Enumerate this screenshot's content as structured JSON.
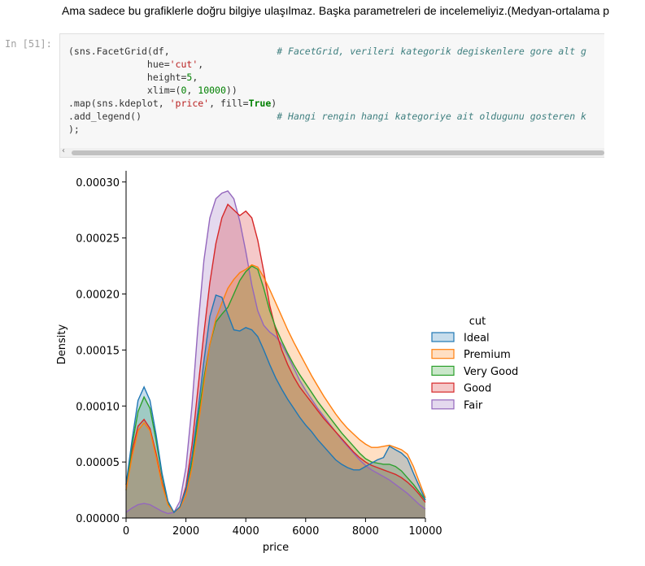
{
  "markdown": {
    "text": "Ama sadece bu grafiklerle doğru bilgiye ulaşılmaz. Başka parametreleri de incelemeliyiz.(Medyan-ortalama p"
  },
  "cell": {
    "prompt": "In [51]:",
    "code_lines": [
      [
        {
          "t": "(sns.FacetGrid(df,                   "
        },
        {
          "t": "# FacetGrid, verileri kategorik degiskenlere gore alt g",
          "c": "cm"
        }
      ],
      [
        {
          "t": "              hue="
        },
        {
          "t": "'cut'",
          "c": "str"
        },
        {
          "t": ","
        }
      ],
      [
        {
          "t": "              height="
        },
        {
          "t": "5",
          "c": "num"
        },
        {
          "t": ","
        }
      ],
      [
        {
          "t": "              xlim=("
        },
        {
          "t": "0",
          "c": "num"
        },
        {
          "t": ", "
        },
        {
          "t": "10000",
          "c": "num"
        },
        {
          "t": "))"
        }
      ],
      [
        {
          "t": ".map(sns.kdeplot, "
        },
        {
          "t": "'price'",
          "c": "str"
        },
        {
          "t": ", fill="
        },
        {
          "t": "True",
          "c": "kw"
        },
        {
          "t": ")"
        }
      ],
      [
        {
          "t": ".add_legend()                        "
        },
        {
          "t": "# Hangi rengin hangi kategoriye ait oldugunu gosteren k",
          "c": "cm"
        }
      ],
      [
        {
          "t": ");"
        }
      ]
    ]
  },
  "chart_data": {
    "type": "area",
    "title": "",
    "xlabel": "price",
    "ylabel": "Density",
    "xlim": [
      0,
      10000
    ],
    "ylim": [
      0,
      0.00031
    ],
    "xticks": [
      0,
      2000,
      4000,
      6000,
      8000,
      10000
    ],
    "xtick_labels": [
      "0",
      "2000",
      "4000",
      "6000",
      "8000",
      "10000"
    ],
    "yticks": [
      0,
      5e-05,
      0.0001,
      0.00015,
      0.0002,
      0.00025,
      0.0003
    ],
    "ytick_labels": [
      "0.00000",
      "0.00005",
      "0.00010",
      "0.00015",
      "0.00020",
      "0.00025",
      "0.00030"
    ],
    "grid": false,
    "legend": {
      "title": "cut",
      "placement": "right"
    },
    "x": [
      0,
      200,
      400,
      600,
      800,
      1000,
      1200,
      1400,
      1600,
      1800,
      2000,
      2200,
      2400,
      2600,
      2800,
      3000,
      3200,
      3400,
      3600,
      3800,
      4000,
      4200,
      4400,
      4600,
      4800,
      5000,
      5200,
      5400,
      5600,
      5800,
      6000,
      6200,
      6400,
      6600,
      6800,
      7000,
      7200,
      7400,
      7600,
      7800,
      8000,
      8200,
      8400,
      8600,
      8800,
      9000,
      9200,
      9400,
      9600,
      9800,
      10000
    ],
    "series": [
      {
        "name": "Ideal",
        "color": "#1f77b4",
        "values": [
          3e-05,
          7e-05,
          0.000105,
          0.000117,
          0.000105,
          7.5e-05,
          4e-05,
          1.5e-05,
          5e-06,
          1e-05,
          2.5e-05,
          5.5e-05,
          9.5e-05,
          0.00014,
          0.00018,
          0.000199,
          0.000197,
          0.000182,
          0.000168,
          0.000167,
          0.00017,
          0.000168,
          0.000162,
          0.00015,
          0.000137,
          0.000125,
          0.000115,
          0.000106,
          9.8e-05,
          9e-05,
          8.3e-05,
          7.7e-05,
          7e-05,
          6.4e-05,
          5.8e-05,
          5.2e-05,
          4.8e-05,
          4.5e-05,
          4.3e-05,
          4.3e-05,
          4.6e-05,
          4.9e-05,
          5.2e-05,
          5.4e-05,
          6.4e-05,
          6.1e-05,
          5.8e-05,
          5.3e-05,
          4e-05,
          2.8e-05,
          1.6e-05
        ]
      },
      {
        "name": "Premium",
        "color": "#ff7f0e",
        "values": [
          2.5e-05,
          5.5e-05,
          7.8e-05,
          8.5e-05,
          7.8e-05,
          5.5e-05,
          3e-05,
          1.2e-05,
          5e-06,
          9e-06,
          2e-05,
          4.5e-05,
          8e-05,
          0.00012,
          0.000155,
          0.000178,
          0.000192,
          0.000205,
          0.000213,
          0.000219,
          0.000222,
          0.000226,
          0.000224,
          0.000215,
          0.000204,
          0.000192,
          0.00018,
          0.000168,
          0.000157,
          0.000147,
          0.000137,
          0.000127,
          0.000118,
          0.000109,
          0.000101,
          9.3e-05,
          8.6e-05,
          8e-05,
          7.5e-05,
          7e-05,
          6.6e-05,
          6.3e-05,
          6.3e-05,
          6.4e-05,
          6.5e-05,
          6.3e-05,
          6.1e-05,
          5.7e-05,
          4.6e-05,
          3.2e-05,
          1.8e-05
        ]
      },
      {
        "name": "Very Good",
        "color": "#2ca02c",
        "values": [
          2.5e-05,
          6.5e-05,
          9.5e-05,
          0.000108,
          9.8e-05,
          7e-05,
          3.8e-05,
          1.4e-05,
          5e-06,
          1e-05,
          2.5e-05,
          5e-05,
          8.8e-05,
          0.000125,
          0.000155,
          0.000175,
          0.000182,
          0.000188,
          0.0002,
          0.000212,
          0.00022,
          0.000225,
          0.000222,
          0.000205,
          0.000185,
          0.00017,
          0.000158,
          0.000147,
          0.000137,
          0.000128,
          0.00012,
          0.000112,
          0.000104,
          9.7e-05,
          9e-05,
          8.3e-05,
          7.6e-05,
          7e-05,
          6.4e-05,
          5.8e-05,
          5.3e-05,
          5e-05,
          4.9e-05,
          4.8e-05,
          4.8e-05,
          4.6e-05,
          4.2e-05,
          3.6e-05,
          3e-05,
          2.3e-05,
          1.6e-05
        ]
      },
      {
        "name": "Good",
        "color": "#d62728",
        "values": [
          3e-05,
          6e-05,
          8.2e-05,
          8.8e-05,
          8e-05,
          5.8e-05,
          3.2e-05,
          1.3e-05,
          5e-06,
          1e-05,
          2.8e-05,
          6.5e-05,
          0.000115,
          0.000165,
          0.00021,
          0.000245,
          0.000268,
          0.00028,
          0.000275,
          0.00027,
          0.000274,
          0.000268,
          0.000248,
          0.00022,
          0.00019,
          0.000168,
          0.00015,
          0.000137,
          0.000126,
          0.000117,
          0.00011,
          0.000103,
          9.6e-05,
          8.9e-05,
          8.3e-05,
          7.7e-05,
          7.1e-05,
          6.5e-05,
          5.9e-05,
          5.4e-05,
          5e-05,
          4.7e-05,
          4.5e-05,
          4.3e-05,
          4.1e-05,
          3.9e-05,
          3.6e-05,
          3.2e-05,
          2.7e-05,
          2.1e-05,
          1.4e-05
        ]
      },
      {
        "name": "Fair",
        "color": "#9467bd",
        "values": [
          5e-06,
          9e-06,
          1.2e-05,
          1.3e-05,
          1.2e-05,
          9e-06,
          6e-06,
          4e-06,
          5e-06,
          1.5e-05,
          4.5e-05,
          0.0001,
          0.00017,
          0.00023,
          0.000268,
          0.000285,
          0.00029,
          0.000292,
          0.000285,
          0.000265,
          0.000238,
          0.000208,
          0.000185,
          0.000172,
          0.000166,
          0.000162,
          0.000155,
          0.000145,
          0.000134,
          0.000123,
          0.000114,
          0.000106,
          9.8e-05,
          9.1e-05,
          8.4e-05,
          7.7e-05,
          7e-05,
          6.4e-05,
          5.8e-05,
          5.2e-05,
          4.7e-05,
          4.3e-05,
          4e-05,
          3.7e-05,
          3.4e-05,
          3e-05,
          2.6e-05,
          2.2e-05,
          1.7e-05,
          1.2e-05,
          8e-06
        ]
      }
    ]
  }
}
